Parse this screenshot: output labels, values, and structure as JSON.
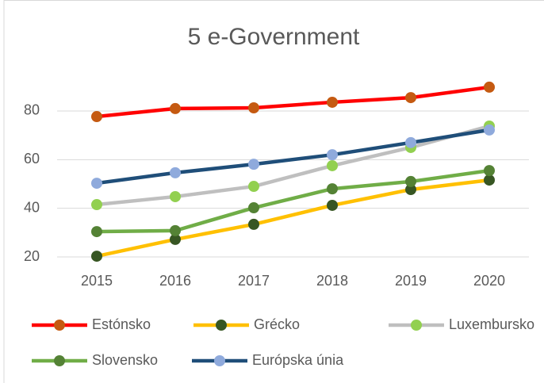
{
  "chart_data": {
    "type": "line",
    "title": "5 e-Government",
    "categories": [
      "2015",
      "2016",
      "2017",
      "2018",
      "2019",
      "2020"
    ],
    "series": [
      {
        "name": "Estónsko",
        "color": "#ff0000",
        "marker_color": "#c55a11",
        "values": [
          77.7,
          81.0,
          81.3,
          83.6,
          85.5,
          89.8
        ]
      },
      {
        "name": "Grécko",
        "color": "#ffc000",
        "marker_color": "#375623",
        "values": [
          20.3,
          27.2,
          33.4,
          41.2,
          47.7,
          51.6
        ]
      },
      {
        "name": "Luxembursko",
        "color": "#bfbfbf",
        "marker_color": "#92d050",
        "values": [
          41.5,
          44.8,
          49.0,
          57.5,
          65.0,
          73.8
        ]
      },
      {
        "name": "Slovensko",
        "color": "#70ad47",
        "marker_color": "#548235",
        "values": [
          30.4,
          30.8,
          40.2,
          48.0,
          51.0,
          55.5
        ]
      },
      {
        "name": "Európska únia",
        "color": "#1f4e79",
        "marker_color": "#8faadc",
        "values": [
          50.3,
          54.6,
          58.1,
          62.0,
          67.0,
          72.2
        ]
      }
    ],
    "ylim": [
      20,
      95
    ],
    "yticks": [
      20,
      40,
      60,
      80
    ],
    "grid": true,
    "legend": "bottom"
  }
}
